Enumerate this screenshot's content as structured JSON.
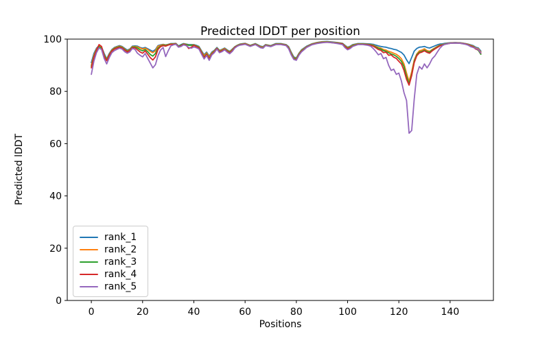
{
  "chart_data": {
    "type": "line",
    "title": "Predicted lDDT per position",
    "xlabel": "Positions",
    "ylabel": "Predicted lDDT",
    "xlim": [
      -9.4,
      156.9
    ],
    "ylim": [
      0,
      100
    ],
    "xticks": [
      0,
      20,
      40,
      60,
      80,
      100,
      120,
      140
    ],
    "yticks": [
      0,
      20,
      40,
      60,
      80,
      100
    ],
    "grid": false,
    "legend_position": "lower left",
    "x": [
      0,
      1,
      2,
      3,
      4,
      5,
      6,
      7,
      8,
      9,
      10,
      11,
      12,
      13,
      14,
      15,
      16,
      17,
      18,
      19,
      20,
      21,
      22,
      23,
      24,
      25,
      26,
      27,
      28,
      29,
      30,
      31,
      32,
      33,
      34,
      35,
      36,
      37,
      38,
      39,
      40,
      41,
      42,
      43,
      44,
      45,
      46,
      47,
      48,
      49,
      50,
      51,
      52,
      53,
      54,
      55,
      56,
      57,
      58,
      60,
      62,
      64,
      66,
      67,
      68,
      70,
      72,
      74,
      76,
      77,
      78,
      79,
      80,
      81,
      82,
      83,
      84,
      86,
      88,
      90,
      92,
      94,
      96,
      98,
      99,
      100,
      101,
      102,
      104,
      106,
      108,
      109,
      110,
      111,
      112,
      113,
      114,
      115,
      116,
      117,
      118,
      119,
      120,
      121,
      122,
      123,
      124,
      125,
      126,
      127,
      128,
      129,
      130,
      131,
      132,
      133,
      134,
      135,
      136,
      137,
      138,
      140,
      142,
      144,
      146,
      147,
      148,
      149,
      150,
      151,
      152
    ],
    "series": [
      {
        "name": "rank_1",
        "color": "#1f77b4",
        "values": [
          91.0,
          94.5,
          96.5,
          97.5,
          97.0,
          94.5,
          92.5,
          94.5,
          96.0,
          96.8,
          97.2,
          97.5,
          97.2,
          96.5,
          95.8,
          96.2,
          97.3,
          97.4,
          97.3,
          96.8,
          96.5,
          96.8,
          96.3,
          95.8,
          95.3,
          96.0,
          97.5,
          97.8,
          98.0,
          97.8,
          98.0,
          98.3,
          98.3,
          98.4,
          97.4,
          97.9,
          98.3,
          98.1,
          97.9,
          97.9,
          97.9,
          97.6,
          97.2,
          95.5,
          94.0,
          95.0,
          93.5,
          95.0,
          95.7,
          96.8,
          95.7,
          96.1,
          96.6,
          95.9,
          95.3,
          96.2,
          97.1,
          97.7,
          98.1,
          98.4,
          97.6,
          98.3,
          97.3,
          97.1,
          97.9,
          97.5,
          98.3,
          98.3,
          97.9,
          97.1,
          95.0,
          93.2,
          92.8,
          94.6,
          95.9,
          96.6,
          97.3,
          98.2,
          98.7,
          99.0,
          99.1,
          98.9,
          98.7,
          98.4,
          97.6,
          96.9,
          97.3,
          97.9,
          98.3,
          98.3,
          98.2,
          98.1,
          98.0,
          97.7,
          97.4,
          97.2,
          97.0,
          96.9,
          96.6,
          96.4,
          96.1,
          95.9,
          95.4,
          94.9,
          93.9,
          92.1,
          90.6,
          93.0,
          95.4,
          96.4,
          96.9,
          97.0,
          97.2,
          96.8,
          96.6,
          97.0,
          97.4,
          97.8,
          98.1,
          98.2,
          98.4,
          98.6,
          98.7,
          98.6,
          98.3,
          98.1,
          97.8,
          97.5,
          96.9,
          96.6,
          95.4
        ]
      },
      {
        "name": "rank_2",
        "color": "#ff7f0e",
        "values": [
          90.0,
          93.8,
          96.2,
          97.3,
          96.8,
          94.0,
          92.2,
          94.2,
          95.8,
          96.6,
          97.0,
          97.3,
          97.0,
          96.2,
          95.5,
          96.0,
          97.1,
          97.2,
          97.0,
          96.6,
          96.2,
          96.5,
          96.0,
          95.3,
          94.8,
          95.5,
          97.3,
          97.6,
          97.9,
          97.7,
          97.9,
          98.2,
          98.2,
          98.3,
          97.2,
          97.7,
          98.2,
          98.0,
          97.7,
          97.7,
          97.8,
          97.4,
          97.0,
          95.2,
          93.6,
          94.7,
          93.1,
          94.7,
          95.5,
          96.6,
          95.5,
          95.9,
          96.4,
          95.7,
          95.1,
          96.0,
          97.0,
          97.6,
          98.0,
          98.3,
          97.5,
          98.2,
          97.1,
          96.9,
          97.8,
          97.4,
          98.2,
          98.2,
          97.8,
          96.9,
          94.7,
          92.9,
          92.6,
          94.4,
          95.7,
          96.4,
          97.1,
          98.1,
          98.6,
          98.9,
          99.0,
          98.8,
          98.6,
          98.3,
          97.4,
          96.7,
          97.1,
          97.7,
          98.2,
          98.2,
          98.0,
          97.9,
          97.7,
          97.2,
          96.8,
          96.5,
          96.0,
          95.8,
          95.3,
          95.0,
          94.6,
          94.2,
          93.5,
          92.5,
          90.5,
          87.0,
          83.8,
          87.5,
          92.0,
          94.3,
          95.5,
          95.8,
          96.3,
          95.6,
          95.3,
          96.0,
          96.6,
          97.2,
          97.7,
          97.9,
          98.2,
          98.5,
          98.6,
          98.5,
          98.2,
          98.0,
          97.6,
          97.3,
          96.6,
          96.3,
          95.0
        ]
      },
      {
        "name": "rank_3",
        "color": "#2ca02c",
        "values": [
          89.5,
          93.3,
          95.9,
          97.1,
          96.6,
          93.7,
          92.0,
          94.0,
          95.6,
          96.4,
          96.8,
          97.1,
          96.8,
          96.0,
          95.3,
          95.8,
          96.9,
          97.0,
          96.6,
          95.9,
          95.5,
          96.0,
          95.2,
          94.1,
          93.5,
          94.5,
          96.6,
          97.3,
          97.7,
          97.5,
          97.8,
          98.1,
          98.1,
          98.2,
          97.1,
          97.6,
          98.1,
          97.9,
          97.6,
          97.6,
          97.7,
          97.3,
          96.8,
          94.9,
          93.1,
          94.3,
          92.6,
          94.4,
          95.3,
          96.5,
          95.3,
          95.7,
          96.2,
          95.5,
          94.9,
          95.8,
          96.9,
          97.5,
          97.9,
          98.2,
          97.4,
          98.1,
          96.9,
          96.7,
          97.7,
          97.3,
          98.1,
          98.1,
          97.7,
          96.7,
          94.4,
          92.7,
          92.4,
          94.2,
          95.5,
          96.2,
          97.0,
          98.0,
          98.5,
          98.8,
          98.9,
          98.7,
          98.5,
          98.2,
          97.2,
          96.5,
          96.9,
          97.5,
          98.1,
          98.1,
          97.9,
          97.8,
          97.5,
          97.0,
          96.5,
          96.2,
          95.6,
          95.3,
          94.8,
          94.3,
          94.0,
          93.4,
          92.6,
          91.5,
          89.5,
          85.7,
          83.0,
          86.5,
          91.5,
          94.0,
          95.0,
          95.3,
          95.8,
          95.2,
          95.0,
          95.8,
          96.4,
          97.0,
          97.6,
          97.8,
          98.1,
          98.4,
          98.5,
          98.4,
          98.1,
          97.9,
          97.4,
          97.1,
          96.3,
          95.7,
          94.2
        ]
      },
      {
        "name": "rank_4",
        "color": "#d62728",
        "values": [
          89.0,
          93.0,
          95.7,
          97.9,
          97.2,
          93.4,
          91.7,
          93.8,
          95.4,
          96.2,
          96.6,
          96.9,
          96.6,
          95.8,
          95.1,
          95.6,
          96.7,
          96.7,
          95.9,
          95.1,
          94.6,
          95.5,
          94.2,
          92.9,
          92.0,
          93.2,
          96.0,
          97.1,
          97.5,
          97.3,
          97.7,
          98.0,
          98.0,
          98.1,
          97.0,
          97.4,
          98.0,
          97.7,
          96.4,
          96.9,
          97.6,
          97.1,
          96.6,
          94.7,
          92.9,
          94.1,
          92.4,
          94.2,
          95.1,
          96.4,
          95.1,
          95.5,
          96.1,
          95.3,
          94.7,
          95.6,
          96.8,
          97.4,
          97.8,
          98.1,
          97.3,
          98.0,
          96.8,
          96.6,
          97.6,
          97.2,
          98.0,
          98.0,
          97.6,
          96.5,
          94.1,
          92.4,
          92.1,
          94.0,
          95.3,
          96.0,
          96.9,
          97.9,
          98.4,
          98.7,
          98.8,
          98.6,
          98.4,
          98.1,
          97.0,
          96.3,
          96.7,
          97.3,
          98.0,
          98.0,
          97.8,
          97.6,
          97.3,
          96.7,
          96.0,
          95.7,
          94.8,
          95.0,
          93.8,
          94.0,
          93.1,
          92.6,
          91.5,
          90.5,
          88.0,
          84.6,
          82.4,
          86.0,
          91.0,
          93.6,
          94.7,
          95.0,
          95.5,
          94.9,
          94.6,
          95.5,
          96.2,
          96.8,
          97.4,
          97.7,
          98.0,
          98.4,
          98.5,
          98.4,
          98.1,
          97.8,
          97.3,
          97.0,
          96.2,
          95.9,
          94.6
        ]
      },
      {
        "name": "rank_5",
        "color": "#9467bd",
        "values": [
          86.5,
          91.5,
          94.8,
          96.6,
          96.0,
          92.6,
          90.5,
          92.9,
          94.8,
          95.6,
          96.1,
          96.5,
          96.2,
          95.2,
          94.6,
          95.1,
          96.4,
          96.1,
          94.6,
          93.8,
          93.2,
          94.5,
          92.6,
          90.8,
          89.0,
          90.2,
          93.6,
          95.8,
          96.8,
          93.3,
          95.5,
          97.4,
          97.8,
          98.0,
          96.9,
          97.2,
          97.8,
          97.5,
          96.8,
          96.5,
          97.0,
          96.7,
          96.2,
          94.2,
          92.4,
          93.7,
          91.9,
          93.9,
          94.8,
          96.2,
          94.8,
          95.2,
          95.9,
          95.0,
          94.4,
          95.3,
          96.6,
          97.3,
          97.7,
          98.0,
          97.2,
          97.9,
          96.7,
          96.5,
          97.5,
          97.1,
          97.9,
          97.9,
          97.5,
          96.3,
          93.9,
          92.2,
          91.9,
          93.8,
          95.1,
          95.9,
          96.8,
          97.8,
          98.3,
          98.6,
          98.8,
          98.6,
          98.3,
          97.9,
          96.7,
          95.9,
          96.4,
          97.2,
          97.9,
          97.9,
          97.6,
          97.3,
          96.4,
          95.3,
          94.0,
          94.5,
          92.5,
          93.0,
          90.0,
          88.0,
          88.5,
          86.5,
          87.0,
          84.0,
          79.5,
          76.5,
          64.0,
          65.0,
          77.0,
          86.5,
          89.5,
          88.5,
          90.5,
          89.0,
          90.5,
          92.5,
          93.5,
          95.0,
          96.5,
          97.5,
          98.0,
          98.4,
          98.5,
          98.4,
          98.0,
          97.7,
          97.1,
          96.8,
          96.4,
          96.0,
          94.7
        ]
      }
    ]
  }
}
